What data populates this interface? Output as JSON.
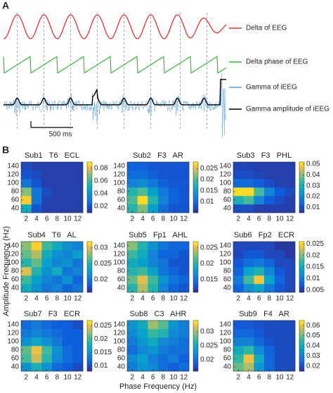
{
  "panel_a": {
    "label": "A",
    "scale_bar": "500 ms",
    "traces": [
      {
        "name": "Delta of EEG",
        "color": "#e8312f"
      },
      {
        "name": "Delta phase of EEG",
        "color": "#3cb93c"
      },
      {
        "name": "Gamma of iEEG",
        "color": "#5aa0d8"
      },
      {
        "name": "Gamma amplitude of iEEG",
        "color": "#000000"
      }
    ]
  },
  "panel_b": {
    "label": "B",
    "x_label": "Phase Frequency (Hz)",
    "y_label": "Amplitude Frequency (Hz)",
    "colormap": "parula"
  },
  "chart_data": [
    {
      "type": "heatmap",
      "title": "Sub1   T6   ECL",
      "x": [
        2,
        4,
        6,
        8,
        10,
        12
      ],
      "y": [
        40,
        60,
        80,
        100,
        120,
        140
      ],
      "xlim": [
        1,
        13
      ],
      "ylim": [
        30,
        150
      ],
      "xticks": [
        2,
        4,
        6,
        8,
        10,
        12
      ],
      "yticks": [
        40,
        60,
        80,
        100,
        120,
        140
      ],
      "clim": [
        0.01,
        0.09
      ],
      "cticks": [
        0.02,
        0.04,
        0.06,
        0.08
      ],
      "values": [
        [
          0.05,
          0.02,
          0.015,
          0.015,
          0.015,
          0.015
        ],
        [
          0.085,
          0.03,
          0.016,
          0.015,
          0.015,
          0.015
        ],
        [
          0.07,
          0.03,
          0.018,
          0.015,
          0.015,
          0.015
        ],
        [
          0.03,
          0.02,
          0.015,
          0.015,
          0.015,
          0.015
        ],
        [
          0.02,
          0.018,
          0.015,
          0.015,
          0.015,
          0.015
        ],
        [
          0.018,
          0.015,
          0.015,
          0.015,
          0.015,
          0.015
        ]
      ]
    },
    {
      "type": "heatmap",
      "title": "Sub2   F3   AR",
      "x": [
        2,
        4,
        6,
        8,
        10,
        12
      ],
      "y": [
        40,
        60,
        80,
        100,
        120,
        140
      ],
      "xlim": [
        1,
        13
      ],
      "ylim": [
        30,
        150
      ],
      "xticks": [
        2,
        4,
        6,
        8,
        10,
        12
      ],
      "yticks": [
        40,
        60,
        80,
        100,
        120,
        140
      ],
      "clim": [
        0.005,
        0.028
      ],
      "cticks": [
        0.01,
        0.015,
        0.02,
        0.025
      ],
      "values": [
        [
          0.018,
          0.022,
          0.015,
          0.01,
          0.008,
          0.008
        ],
        [
          0.02,
          0.027,
          0.018,
          0.012,
          0.009,
          0.008
        ],
        [
          0.018,
          0.02,
          0.015,
          0.011,
          0.009,
          0.008
        ],
        [
          0.012,
          0.013,
          0.011,
          0.009,
          0.008,
          0.008
        ],
        [
          0.01,
          0.01,
          0.009,
          0.008,
          0.008,
          0.008
        ],
        [
          0.009,
          0.009,
          0.008,
          0.008,
          0.008,
          0.008
        ]
      ]
    },
    {
      "type": "heatmap",
      "title": "Sub3   F3   PHL",
      "x": [
        2,
        4,
        6,
        8,
        10,
        12
      ],
      "y": [
        40,
        60,
        80,
        100,
        120,
        140
      ],
      "xlim": [
        1,
        13
      ],
      "ylim": [
        30,
        150
      ],
      "xticks": [
        2,
        4,
        6,
        8,
        10,
        12
      ],
      "yticks": [
        40,
        60,
        80,
        100,
        120,
        140
      ],
      "clim": [
        0.005,
        0.052
      ],
      "cticks": [
        0.01,
        0.02,
        0.03,
        0.04,
        0.05
      ],
      "values": [
        [
          0.01,
          0.01,
          0.008,
          0.008,
          0.008,
          0.008
        ],
        [
          0.03,
          0.035,
          0.02,
          0.012,
          0.01,
          0.008
        ],
        [
          0.05,
          0.05,
          0.035,
          0.02,
          0.012,
          0.01
        ],
        [
          0.015,
          0.015,
          0.012,
          0.01,
          0.008,
          0.008
        ],
        [
          0.01,
          0.01,
          0.009,
          0.008,
          0.008,
          0.008
        ],
        [
          0.009,
          0.009,
          0.008,
          0.008,
          0.008,
          0.008
        ]
      ]
    },
    {
      "type": "heatmap",
      "title": "Sub4   T6   AL",
      "x": [
        2,
        4,
        6,
        8,
        10,
        12
      ],
      "y": [
        40,
        60,
        80,
        100,
        120,
        140
      ],
      "xlim": [
        1,
        13
      ],
      "ylim": [
        30,
        150
      ],
      "xticks": [
        2,
        4,
        6,
        8,
        10,
        12
      ],
      "yticks": [
        40,
        60,
        80,
        100,
        120,
        140
      ],
      "clim": [
        0.016,
        0.032
      ],
      "cticks": [
        0.02,
        0.025,
        0.03
      ],
      "values": [
        [
          0.024,
          0.022,
          0.02,
          0.021,
          0.019,
          0.02
        ],
        [
          0.026,
          0.023,
          0.021,
          0.02,
          0.022,
          0.019
        ],
        [
          0.03,
          0.025,
          0.022,
          0.024,
          0.02,
          0.021
        ],
        [
          0.025,
          0.027,
          0.023,
          0.021,
          0.022,
          0.02
        ],
        [
          0.027,
          0.029,
          0.024,
          0.022,
          0.021,
          0.023
        ],
        [
          0.028,
          0.031,
          0.026,
          0.024,
          0.022,
          0.021
        ]
      ]
    },
    {
      "type": "heatmap",
      "title": "Sub5   Fp1   AHL",
      "x": [
        2,
        4,
        6,
        8,
        10,
        12
      ],
      "y": [
        40,
        60,
        80,
        100,
        120,
        140
      ],
      "xlim": [
        1,
        13
      ],
      "ylim": [
        30,
        150
      ],
      "xticks": [
        2,
        4,
        6,
        8,
        10,
        12
      ],
      "yticks": [
        40,
        60,
        80,
        100,
        120,
        140
      ],
      "clim": [
        0.011,
        0.027
      ],
      "cticks": [
        0.015,
        0.02,
        0.025
      ],
      "values": [
        [
          0.02,
          0.024,
          0.02,
          0.016,
          0.014,
          0.013
        ],
        [
          0.022,
          0.025,
          0.021,
          0.017,
          0.015,
          0.014
        ],
        [
          0.02,
          0.021,
          0.018,
          0.015,
          0.014,
          0.013
        ],
        [
          0.019,
          0.018,
          0.016,
          0.015,
          0.013,
          0.013
        ],
        [
          0.021,
          0.019,
          0.016,
          0.014,
          0.014,
          0.013
        ],
        [
          0.023,
          0.02,
          0.017,
          0.015,
          0.014,
          0.014
        ]
      ]
    },
    {
      "type": "heatmap",
      "title": "Sub6   Fp2   ECR",
      "x": [
        2,
        4,
        6,
        8,
        10,
        12
      ],
      "y": [
        40,
        60,
        80,
        100,
        120,
        140
      ],
      "xlim": [
        1,
        13
      ],
      "ylim": [
        30,
        150
      ],
      "xticks": [
        2,
        4,
        6,
        8,
        10,
        12
      ],
      "yticks": [
        40,
        60,
        80,
        100,
        120,
        140
      ],
      "clim": [
        0.004,
        0.026
      ],
      "cticks": [
        0.005,
        0.01,
        0.015,
        0.02,
        0.025
      ],
      "values": [
        [
          0.008,
          0.012,
          0.014,
          0.01,
          0.007,
          0.006
        ],
        [
          0.01,
          0.018,
          0.024,
          0.014,
          0.008,
          0.006
        ],
        [
          0.008,
          0.014,
          0.016,
          0.011,
          0.007,
          0.006
        ],
        [
          0.007,
          0.009,
          0.01,
          0.008,
          0.006,
          0.006
        ],
        [
          0.006,
          0.007,
          0.007,
          0.006,
          0.006,
          0.005
        ],
        [
          0.006,
          0.006,
          0.006,
          0.006,
          0.005,
          0.005
        ]
      ]
    },
    {
      "type": "heatmap",
      "title": "Sub7   F3   ECR",
      "x": [
        2,
        4,
        6,
        8,
        10,
        12
      ],
      "y": [
        40,
        60,
        80,
        100,
        120,
        140
      ],
      "xlim": [
        1,
        13
      ],
      "ylim": [
        30,
        150
      ],
      "xticks": [
        2,
        4,
        6,
        8,
        10,
        12
      ],
      "yticks": [
        40,
        60,
        80,
        100,
        120,
        140
      ],
      "clim": [
        0.008,
        0.027
      ],
      "cticks": [
        0.01,
        0.015,
        0.02,
        0.025
      ],
      "values": [
        [
          0.015,
          0.018,
          0.015,
          0.012,
          0.011,
          0.01
        ],
        [
          0.02,
          0.024,
          0.019,
          0.014,
          0.012,
          0.011
        ],
        [
          0.021,
          0.025,
          0.02,
          0.015,
          0.012,
          0.011
        ],
        [
          0.015,
          0.017,
          0.015,
          0.013,
          0.011,
          0.011
        ],
        [
          0.013,
          0.014,
          0.013,
          0.012,
          0.011,
          0.011
        ],
        [
          0.012,
          0.013,
          0.012,
          0.011,
          0.011,
          0.01
        ]
      ]
    },
    {
      "type": "heatmap",
      "title": "Sub8   C3   AHR",
      "x": [
        2,
        4,
        6,
        8,
        10,
        12
      ],
      "y": [
        40,
        60,
        80,
        100,
        120,
        140
      ],
      "xlim": [
        1,
        13
      ],
      "ylim": [
        30,
        150
      ],
      "xticks": [
        2,
        4,
        6,
        8,
        10,
        12
      ],
      "yticks": [
        40,
        60,
        80,
        100,
        120,
        140
      ],
      "clim": [
        0.016,
        0.034
      ],
      "cticks": [
        0.02,
        0.025,
        0.03
      ],
      "values": [
        [
          0.021,
          0.023,
          0.022,
          0.02,
          0.019,
          0.02
        ],
        [
          0.022,
          0.024,
          0.021,
          0.02,
          0.021,
          0.019
        ],
        [
          0.02,
          0.022,
          0.023,
          0.021,
          0.02,
          0.02
        ],
        [
          0.021,
          0.023,
          0.025,
          0.022,
          0.021,
          0.02
        ],
        [
          0.022,
          0.024,
          0.027,
          0.026,
          0.022,
          0.021
        ],
        [
          0.023,
          0.025,
          0.03,
          0.028,
          0.023,
          0.021
        ]
      ]
    },
    {
      "type": "heatmap",
      "title": "Sub9   F4   AR",
      "x": [
        2,
        4,
        6,
        8,
        10,
        12
      ],
      "y": [
        40,
        60,
        80,
        100,
        120,
        140
      ],
      "xlim": [
        1,
        13
      ],
      "ylim": [
        30,
        150
      ],
      "xticks": [
        2,
        4,
        6,
        8,
        10,
        12
      ],
      "yticks": [
        40,
        60,
        80,
        100,
        120,
        140
      ],
      "clim": [
        0.015,
        0.065
      ],
      "cticks": [
        0.02,
        0.03,
        0.04,
        0.05,
        0.06
      ],
      "values": [
        [
          0.05,
          0.055,
          0.035,
          0.025,
          0.02,
          0.02
        ],
        [
          0.045,
          0.06,
          0.04,
          0.025,
          0.02,
          0.02
        ],
        [
          0.04,
          0.045,
          0.032,
          0.024,
          0.02,
          0.02
        ],
        [
          0.03,
          0.03,
          0.025,
          0.021,
          0.02,
          0.02
        ],
        [
          0.025,
          0.025,
          0.022,
          0.02,
          0.02,
          0.02
        ],
        [
          0.022,
          0.022,
          0.021,
          0.02,
          0.02,
          0.02
        ]
      ]
    }
  ]
}
